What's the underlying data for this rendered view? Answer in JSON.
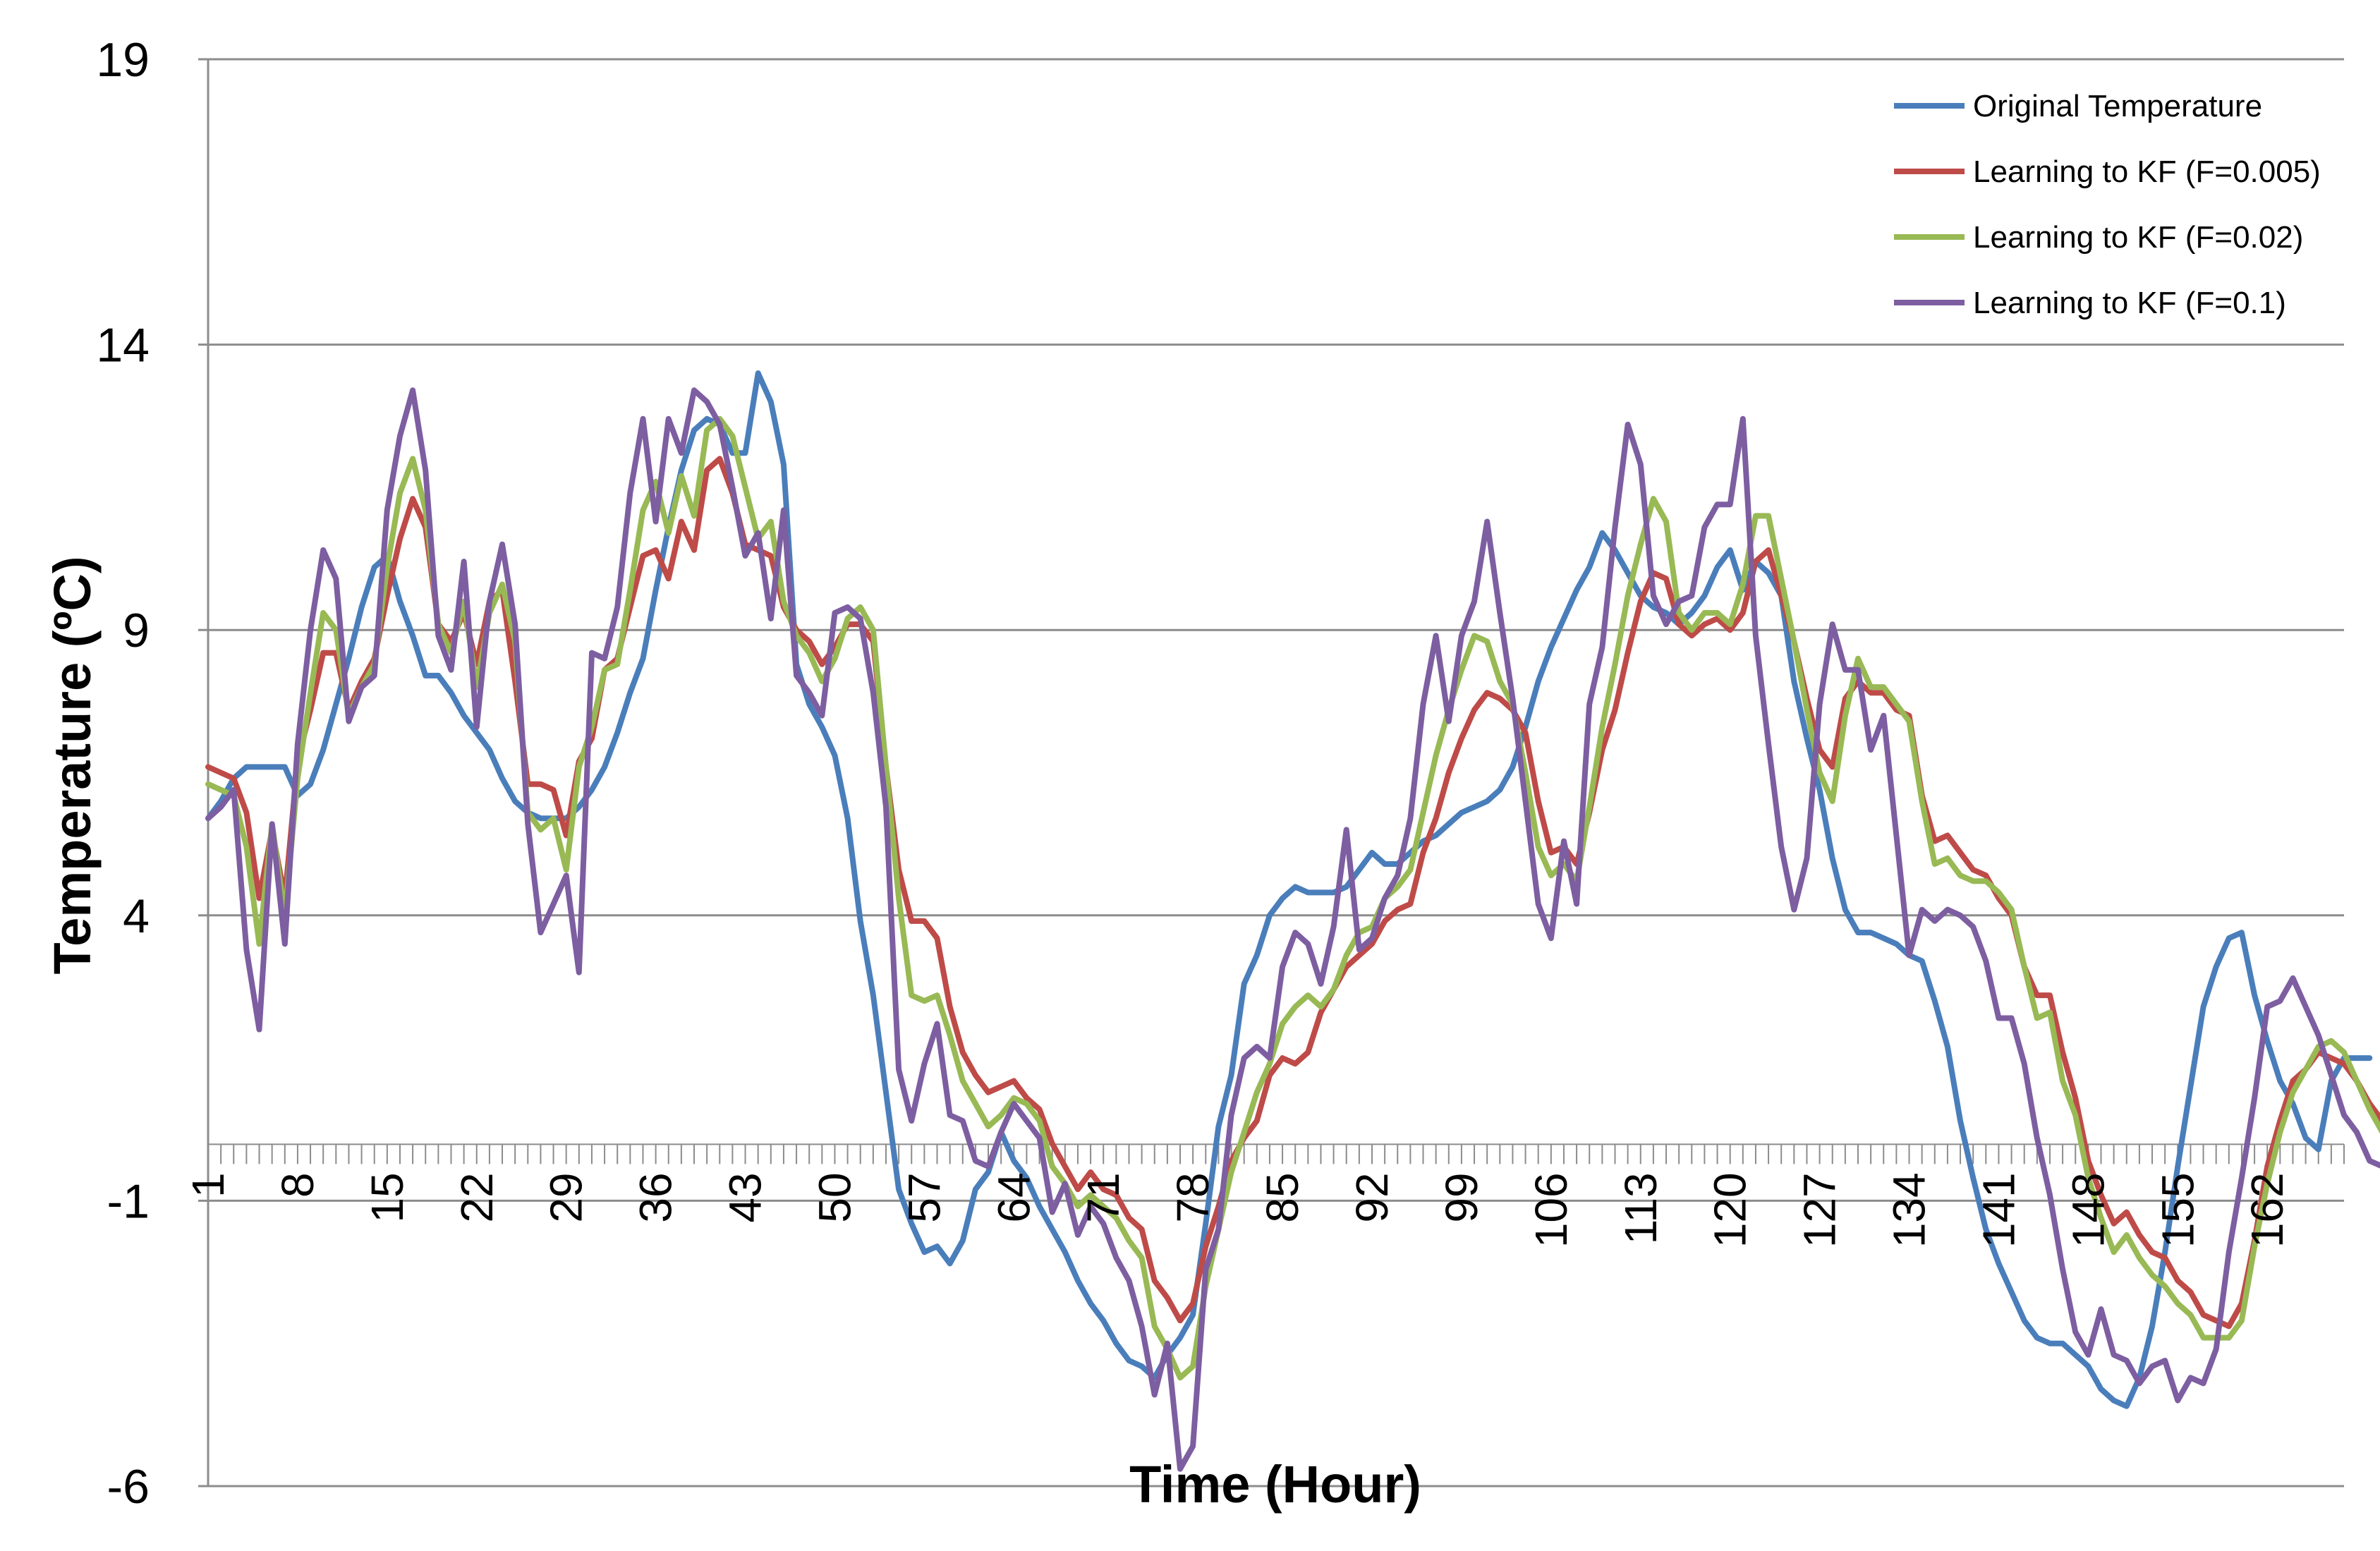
{
  "chart_data": {
    "type": "line",
    "xlabel": "Time (Hour)",
    "ylabel": "Temperature (ºC)",
    "ylim": [
      -6,
      19
    ],
    "xlim": [
      1,
      168
    ],
    "yticks": [
      "19",
      "14",
      "9",
      "4",
      "-1",
      "-6"
    ],
    "xticks": [
      "1",
      "8",
      "15",
      "22",
      "29",
      "36",
      "43",
      "50",
      "57",
      "64",
      "71",
      "78",
      "85",
      "92",
      "99",
      "106",
      "113",
      "120",
      "127",
      "134",
      "141",
      "148",
      "155",
      "162"
    ],
    "grid": "horizontal",
    "legend_position": "top-right",
    "series": [
      {
        "name": "Original Temperature",
        "color": "#4a7ebb",
        "values": [
          5.7,
          6,
          6.4,
          6.6,
          6.6,
          6.6,
          6.6,
          6.1,
          6.3,
          6.9,
          7.7,
          8.5,
          9.4,
          10.1,
          10.3,
          9.5,
          8.9,
          8.2,
          8.2,
          7.9,
          7.5,
          7.2,
          6.9,
          6.4,
          6,
          5.8,
          5.7,
          5.7,
          5.7,
          5.9,
          6.2,
          6.6,
          7.2,
          7.9,
          8.5,
          9.7,
          10.8,
          11.8,
          12.5,
          12.7,
          12.6,
          12.1,
          12.1,
          13.5,
          13,
          11.9,
          8.4,
          7.7,
          7.3,
          6.8,
          5.7,
          3.9,
          2.6,
          0.9,
          -0.8,
          -1.4,
          -1.9,
          -1.8,
          -2.1,
          -1.7,
          -0.8,
          -0.5,
          0.2,
          -0.3,
          -0.6,
          -1.1,
          -1.5,
          -1.9,
          -2.4,
          -2.8,
          -3.1,
          -3.5,
          -3.8,
          -3.9,
          -4.1,
          -3.7,
          -3.4,
          -3,
          -1.4,
          0.3,
          1.2,
          2.8,
          3.3,
          4,
          4.3,
          4.5,
          4.4,
          4.4,
          4.4,
          4.5,
          4.8,
          5.1,
          4.9,
          4.9,
          5.1,
          5.3,
          5.4,
          5.6,
          5.8,
          5.9,
          6,
          6.2,
          6.6,
          7.3,
          8.1,
          8.7,
          9.2,
          9.7,
          10.1,
          10.7,
          10.4,
          10,
          9.6,
          9.4,
          9.3,
          9.1,
          9.3,
          9.6,
          10.1,
          10.4,
          9.7,
          10.2,
          10,
          9.6,
          8.1,
          7.1,
          6.2,
          5,
          4.1,
          3.7,
          3.7,
          3.6,
          3.5,
          3.3,
          3.2,
          2.5,
          1.7,
          0.4,
          -0.6,
          -1.5,
          -2.1,
          -2.6,
          -3.1,
          -3.4,
          -3.5,
          -3.5,
          -3.7,
          -3.9,
          -4.3,
          -4.5,
          -4.6,
          -4.1,
          -3.2,
          -1.9,
          -0.4,
          1,
          2.4,
          3.1,
          3.6,
          3.7,
          2.6,
          1.8,
          1.1,
          0.7,
          0.1,
          -0.1,
          1.1,
          1.5,
          1.5,
          1.5
        ]
      },
      {
        "name": "Learning to KF (F=0.005)",
        "color": "#be4b48",
        "values": [
          6.6,
          6.5,
          6.4,
          5.8,
          4.3,
          5.5,
          4.3,
          6.7,
          7.6,
          8.6,
          8.6,
          7.6,
          8.1,
          8.5,
          9.6,
          10.6,
          11.3,
          10.8,
          9.1,
          8.8,
          9.3,
          8.4,
          9.5,
          9.7,
          8.1,
          6.3,
          6.3,
          6.2,
          5.4,
          6.7,
          7.1,
          8.3,
          8.5,
          9.4,
          10.3,
          10.4,
          9.9,
          10.9,
          10.4,
          11.8,
          12,
          11.4,
          10.5,
          10.4,
          10.3,
          9.4,
          9,
          8.8,
          8.4,
          8.7,
          9.1,
          9.1,
          8.8,
          6.6,
          4.8,
          3.9,
          3.9,
          3.6,
          2.4,
          1.6,
          1.2,
          0.9,
          1,
          1.1,
          0.8,
          0.6,
          0,
          -0.4,
          -0.8,
          -0.5,
          -0.8,
          -0.9,
          -1.3,
          -1.5,
          -2.4,
          -2.7,
          -3.1,
          -2.8,
          -1.8,
          -1.1,
          -0.3,
          0.1,
          0.4,
          1.2,
          1.5,
          1.4,
          1.6,
          2.3,
          2.7,
          3.1,
          3.3,
          3.5,
          3.9,
          4.1,
          4.2,
          5.1,
          5.7,
          6.5,
          7.1,
          7.6,
          7.9,
          7.8,
          7.6,
          7.2,
          6,
          5.1,
          5.2,
          4.9,
          5.8,
          6.9,
          7.6,
          8.6,
          9.5,
          10,
          9.9,
          9.1,
          8.9,
          9.1,
          9.2,
          9,
          9.3,
          10.2,
          10.4,
          9.6,
          8.8,
          7.8,
          6.9,
          6.6,
          7.8,
          8.1,
          7.9,
          7.9,
          7.6,
          7.5,
          6.1,
          5.3,
          5.4,
          5.1,
          4.8,
          4.7,
          4.3,
          4,
          3.1,
          2.6,
          2.6,
          1.6,
          0.8,
          -0.3,
          -0.9,
          -1.4,
          -1.2,
          -1.6,
          -1.9,
          -2,
          -2.4,
          -2.6,
          -3,
          -3.1,
          -3.2,
          -2.8,
          -1.7,
          -0.4,
          0.4,
          1.1,
          1.3,
          1.6,
          1.5,
          1.4,
          1.1,
          0.7,
          0.4,
          0.2
        ]
      },
      {
        "name": "Learning to KF (F=0.02)",
        "color": "#98b954",
        "values": [
          6.3,
          6.2,
          6.1,
          5.2,
          3.5,
          5.6,
          4,
          6.4,
          7.9,
          9.3,
          9,
          7.5,
          8,
          8.4,
          10.1,
          11.4,
          12,
          11.1,
          9.1,
          8.6,
          9.5,
          8,
          9.3,
          9.8,
          8.8,
          5.8,
          5.5,
          5.7,
          4.8,
          6.6,
          7.3,
          8.3,
          8.4,
          9.7,
          11.1,
          11.6,
          10.7,
          11.7,
          11,
          12.5,
          12.7,
          12.4,
          11.5,
          10.6,
          10.9,
          9.5,
          8.9,
          8.6,
          8.1,
          8.5,
          9.2,
          9.4,
          9,
          6.6,
          4.3,
          2.6,
          2.5,
          2.6,
          1.9,
          1.1,
          0.7,
          0.3,
          0.5,
          0.8,
          0.7,
          0.4,
          -0.4,
          -0.7,
          -1.1,
          -0.9,
          -1.1,
          -1.3,
          -1.7,
          -2,
          -3.2,
          -3.6,
          -4.1,
          -3.9,
          -2.5,
          -1.5,
          -0.5,
          0.2,
          0.9,
          1.4,
          2.1,
          2.4,
          2.6,
          2.4,
          2.7,
          3.3,
          3.7,
          3.8,
          4.3,
          4.5,
          4.8,
          5.8,
          6.8,
          7.6,
          8.3,
          8.9,
          8.8,
          8.1,
          7.7,
          6.5,
          5.2,
          4.7,
          4.9,
          4.6,
          5.9,
          7.3,
          8.4,
          9.6,
          10.5,
          11.3,
          10.9,
          9.3,
          9,
          9.3,
          9.3,
          9.1,
          9.8,
          11,
          11,
          9.9,
          8.8,
          7.6,
          6.5,
          6,
          7.5,
          8.5,
          8,
          8,
          7.7,
          7.4,
          6,
          4.9,
          5,
          4.7,
          4.6,
          4.6,
          4.4,
          4.1,
          3.1,
          2.2,
          2.3,
          1.1,
          0.5,
          -0.6,
          -1.3,
          -1.9,
          -1.6,
          -2,
          -2.3,
          -2.5,
          -2.8,
          -3,
          -3.4,
          -3.4,
          -3.4,
          -3.1,
          -1.8,
          -0.7,
          0.2,
          0.9,
          1.3,
          1.7,
          1.8,
          1.6,
          1.1,
          0.6,
          0.2,
          0
        ]
      },
      {
        "name": "Learning to KF (F=0.1)",
        "color": "#7d5ea1",
        "values": [
          5.7,
          5.9,
          6.2,
          3.4,
          2,
          5.6,
          3.5,
          7,
          9,
          10.4,
          9.9,
          7.4,
          8,
          8.2,
          11.1,
          12.4,
          13.2,
          11.8,
          8.9,
          8.3,
          10.2,
          7.3,
          9.5,
          10.5,
          9.1,
          5.6,
          3.7,
          4.2,
          4.7,
          3,
          8.6,
          8.5,
          9.4,
          11.4,
          12.7,
          10.9,
          12.7,
          12.1,
          13.2,
          13,
          12.6,
          11.5,
          10.3,
          10.7,
          9.2,
          11.1,
          8.2,
          7.9,
          7.5,
          9.3,
          9.4,
          9.2,
          7.9,
          5.9,
          1.3,
          0.4,
          1.4,
          2.1,
          0.5,
          0.4,
          -0.3,
          -0.4,
          0.2,
          0.7,
          0.4,
          0.1,
          -1.2,
          -0.7,
          -1.6,
          -1.1,
          -1.4,
          -2,
          -2.4,
          -3.2,
          -4.4,
          -3.5,
          -5.7,
          -5.3,
          -2.2,
          -1.5,
          0.5,
          1.5,
          1.7,
          1.5,
          3.1,
          3.7,
          3.5,
          2.8,
          3.8,
          5.5,
          3.4,
          3.6,
          4.3,
          4.7,
          5.7,
          7.7,
          8.9,
          7.4,
          8.9,
          9.5,
          10.9,
          9.3,
          7.8,
          6,
          4.2,
          3.6,
          5.3,
          4.2,
          7.7,
          8.7,
          10.8,
          12.6,
          11.9,
          9.6,
          9.1,
          9.5,
          9.6,
          10.8,
          11.2,
          11.2,
          12.7,
          8.9,
          7,
          5.2,
          4.1,
          5,
          7.7,
          9.1,
          8.3,
          8.3,
          6.9,
          7.5,
          5.4,
          3.3,
          4.1,
          3.9,
          4.1,
          4,
          3.8,
          3.2,
          2.2,
          2.2,
          1.4,
          0.1,
          -0.9,
          -2.2,
          -3.3,
          -3.7,
          -2.9,
          -3.7,
          -3.8,
          -4.2,
          -3.9,
          -3.8,
          -4.5,
          -4.1,
          -4.2,
          -3.6,
          -1.9,
          -0.6,
          0.8,
          2.4,
          2.5,
          2.9,
          2.4,
          1.9,
          1.2,
          0.5,
          0.2,
          -0.3,
          -0.4,
          0.4,
          0,
          0.3
        ]
      }
    ]
  }
}
